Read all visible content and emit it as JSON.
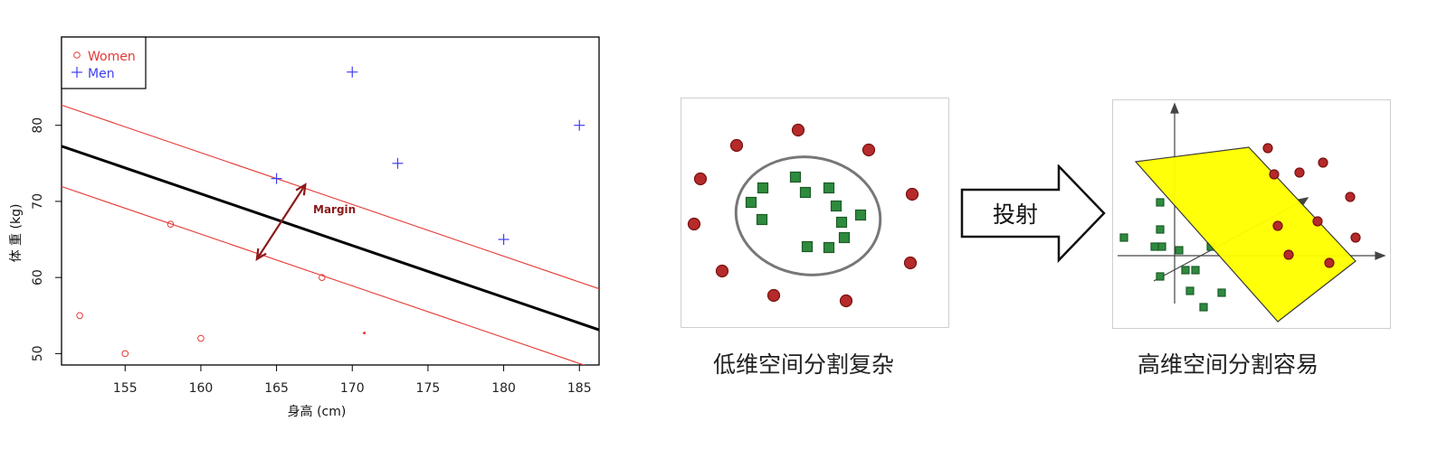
{
  "chart_data": {
    "type": "scatter",
    "xlabel": "身高 (cm)",
    "ylabel": "体 重 (kg)",
    "xlim": [
      150.8,
      186.3
    ],
    "ylim": [
      48.5,
      91.6
    ],
    "xticks": [
      155,
      160,
      165,
      170,
      175,
      180,
      185
    ],
    "yticks": [
      50,
      60,
      70,
      80
    ],
    "grid": false,
    "legend_position": "top-left",
    "series": [
      {
        "name": "Women",
        "marker": "circle",
        "color": "#e53935",
        "points": [
          [
            152,
            55
          ],
          [
            155,
            50
          ],
          [
            158,
            67
          ],
          [
            160,
            52
          ],
          [
            168,
            60
          ]
        ]
      },
      {
        "name": "Men",
        "marker": "plus",
        "color": "#3f3ff0",
        "points": [
          [
            165,
            73
          ],
          [
            170,
            87
          ],
          [
            173,
            75
          ],
          [
            180,
            65
          ],
          [
            185,
            80
          ]
        ]
      }
    ],
    "stray_point": [
      170.8,
      52.7
    ],
    "decision_line": {
      "slope": -0.68,
      "intercept": 179.8,
      "color": "#000000"
    },
    "margin_lines": [
      {
        "slope": -0.68,
        "intercept": 185.2,
        "color": "#e53935"
      },
      {
        "slope": -0.68,
        "intercept": 174.5,
        "color": "#e53935"
      }
    ],
    "margin_annotation": {
      "text": "Margin",
      "arrow_from": [
        163.7,
        62.4
      ],
      "arrow_to": [
        166.9,
        72.2
      ],
      "color": "#8b1a1a"
    }
  },
  "left_diagram": {
    "caption": "低维空间分割复杂"
  },
  "arrow": {
    "label": "投射"
  },
  "right_diagram": {
    "caption": "高维空间分割容易"
  },
  "colors": {
    "red_dot": "#b52a2a",
    "green_square": "#2e8b3e",
    "plane": "#ffff00"
  }
}
